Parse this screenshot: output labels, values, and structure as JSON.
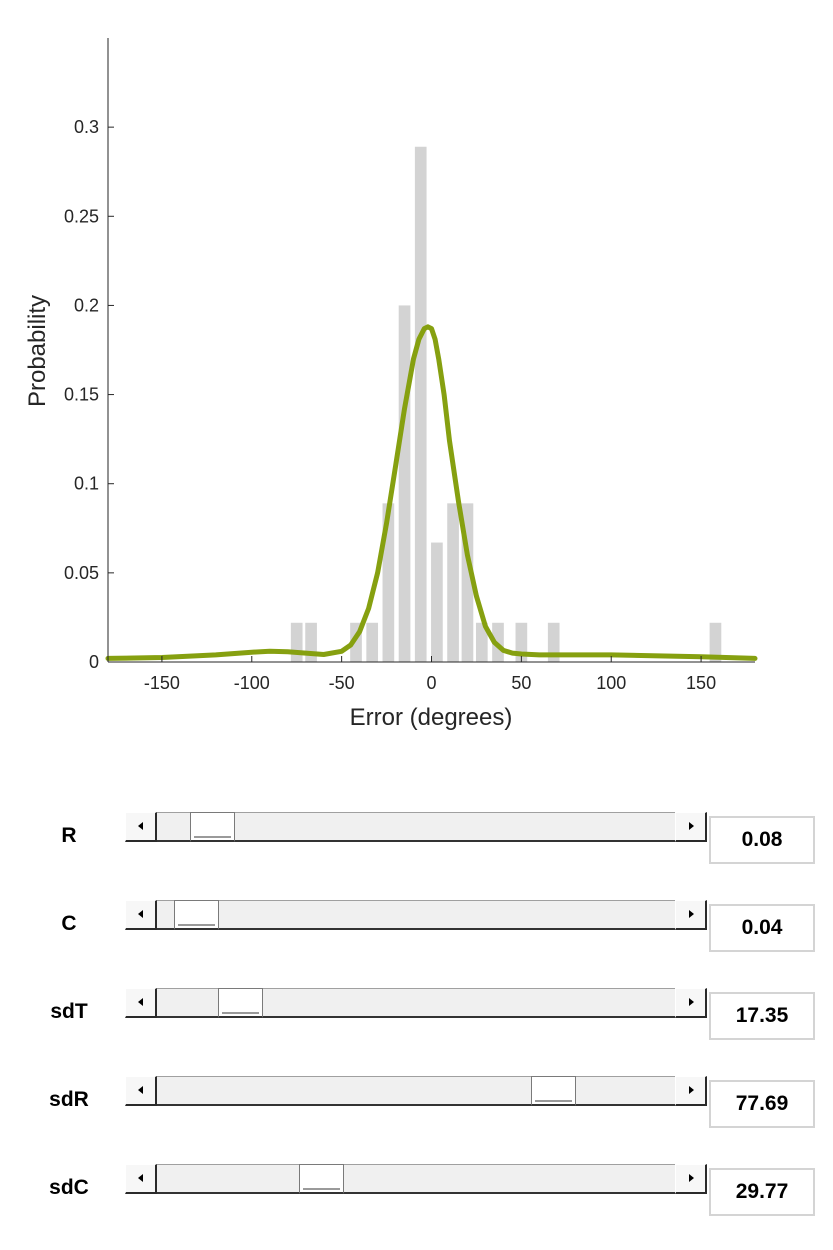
{
  "chart_data": {
    "type": "bar",
    "xlabel": "Error (degrees)",
    "ylabel": "Probability",
    "xlim": [
      -180,
      180
    ],
    "ylim": [
      0,
      0.35
    ],
    "xticks": [
      -150,
      -100,
      -50,
      0,
      50,
      100,
      150
    ],
    "yticks": [
      0,
      0.05,
      0.1,
      0.15,
      0.2,
      0.25,
      0.3
    ],
    "ytick_labels": [
      "0",
      "0.05",
      "0.1",
      "0.15",
      "0.2",
      "0.25",
      "0.3"
    ],
    "bar_width": 6.5,
    "histogram": {
      "x": [
        -75,
        -67,
        -42,
        -33,
        -24,
        -15,
        -6,
        3,
        12,
        20,
        28,
        37,
        50,
        68,
        158
      ],
      "values": [
        0.022,
        0.022,
        0.022,
        0.022,
        0.089,
        0.2,
        0.289,
        0.067,
        0.089,
        0.089,
        0.022,
        0.022,
        0.022,
        0.022,
        0.022
      ],
      "color": "#d3d3d3"
    },
    "curve": {
      "color": "#86a010",
      "x": [
        -180,
        -150,
        -120,
        -100,
        -90,
        -80,
        -70,
        -60,
        -50,
        -45,
        -40,
        -35,
        -30,
        -25,
        -20,
        -15,
        -10,
        -7,
        -4,
        -2,
        0,
        2,
        4,
        7,
        10,
        15,
        20,
        25,
        30,
        35,
        40,
        45,
        50,
        60,
        70,
        100,
        150,
        180
      ],
      "values": [
        0.002,
        0.0025,
        0.004,
        0.0055,
        0.006,
        0.0058,
        0.005,
        0.0042,
        0.006,
        0.0095,
        0.017,
        0.03,
        0.05,
        0.078,
        0.11,
        0.142,
        0.17,
        0.181,
        0.187,
        0.188,
        0.187,
        0.181,
        0.17,
        0.15,
        0.124,
        0.09,
        0.06,
        0.037,
        0.02,
        0.011,
        0.0065,
        0.005,
        0.0045,
        0.004,
        0.004,
        0.004,
        0.003,
        0.002
      ]
    }
  },
  "controls": [
    {
      "label": "R",
      "value": "0.08",
      "fraction": 0.07
    },
    {
      "label": "C",
      "value": "0.04",
      "fraction": 0.035
    },
    {
      "label": "sdT",
      "value": "17.35",
      "fraction": 0.13
    },
    {
      "label": "sdR",
      "value": "77.69",
      "fraction": 0.79
    },
    {
      "label": "sdC",
      "value": "29.77",
      "fraction": 0.3
    }
  ]
}
